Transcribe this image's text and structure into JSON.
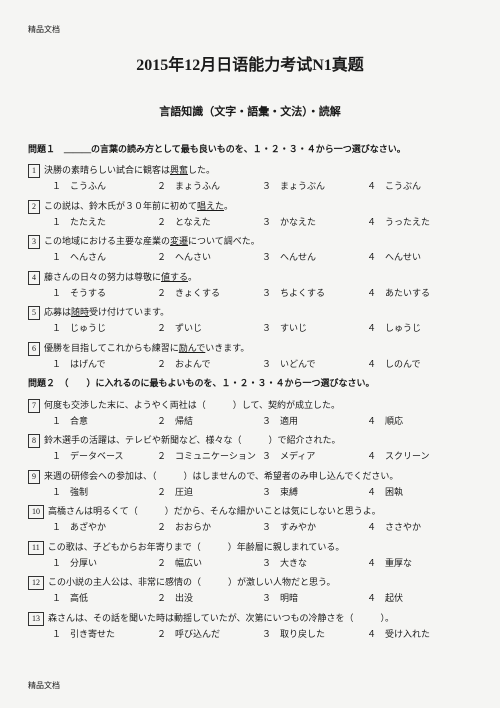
{
  "headerLabel": "精品文档",
  "title": "2015年12月日语能力考试N1真题",
  "subtitle": "言語知識（文字・語彙・文法）・読解",
  "section1": {
    "instruction": "問題１　＿＿＿の言葉の読み方として最も良いものを、１・２・３・４から一つ選びなさい。",
    "questions": [
      {
        "n": "1",
        "text": "決勝の素晴らしい試合に観客は",
        "u": "興奮",
        "after": "した。",
        "opts": [
          "１　こうふん",
          "２　まょうふん",
          "３　まょうぶん",
          "４　こうぶん"
        ]
      },
      {
        "n": "2",
        "text": "この説は、鈴木氏が３０年前に初めて",
        "u": "唱えた",
        "after": "。",
        "opts": [
          "１　たたえた",
          "２　となえた",
          "３　かなえた",
          "４　うったえた"
        ]
      },
      {
        "n": "3",
        "text": "この地域における主要な産業の",
        "u": "変遷",
        "after": "について調べた。",
        "opts": [
          "１　へんさん",
          "２　へんさい",
          "３　へんせん",
          "４　へんせい"
        ]
      },
      {
        "n": "4",
        "text": "藤さんの日々の努力は尊敬に",
        "u": "値する",
        "after": "。",
        "opts": [
          "１　そうする",
          "２　きょくする",
          "３　ちよくする",
          "４　あたいする"
        ]
      },
      {
        "n": "5",
        "text": "応募は",
        "u": "随時",
        "after": "受け付けています。",
        "opts": [
          "１　じゅうじ",
          "２　ずいじ",
          "３　すいじ",
          "４　しゅうじ"
        ]
      },
      {
        "n": "6",
        "text": "優勝を目指してこれからも練習に",
        "u": "励んで",
        "after": "いきます。",
        "opts": [
          "１　はげんで",
          "２　およんで",
          "３　いどんで",
          "４　しのんで"
        ]
      }
    ]
  },
  "section2": {
    "instruction": "問題２　（　　）に入れるのに最もよいものを、１・２・３・４から一つ選びなさい。",
    "questions": [
      {
        "n": "7",
        "text": "何度も交渉した末に、ようやく両社は（　　　）して、契約が成立した。",
        "opts": [
          "１　合意",
          "２　帰結",
          "３　適用",
          "４　順応"
        ]
      },
      {
        "n": "8",
        "text": "鈴木選手の活躍は、テレビや新聞など、様々な（　　　）で紹介された。",
        "opts": [
          "１　データベース",
          "２　コミュニケーション",
          "３　メディア",
          "４　スクリーン"
        ]
      },
      {
        "n": "9",
        "text": "来週の研修会への参加は、（　　　）はしませんので、希望者のみ申し込んでください。",
        "opts": [
          "１　強制",
          "２　圧迫",
          "３　束縛",
          "４　困執"
        ]
      },
      {
        "n": "10",
        "text": "高橋さんは明るくて（　　　）だから、そんな細かいことは気にしないと思うよ。",
        "opts": [
          "１　あざやか",
          "２　おおらか",
          "３　すみやか",
          "４　ささやか"
        ]
      },
      {
        "n": "11",
        "text": "この歌は、子どもからお年寄りまで（　　　）年齢層に親しまれている。",
        "opts": [
          "１　分厚い",
          "２　幅広い",
          "３　大きな",
          "４　重厚な"
        ]
      },
      {
        "n": "12",
        "text": "この小説の主人公は、非常に感情の（　　　）が激しい人物だと思う。",
        "opts": [
          "１　高低",
          "２　出没",
          "３　明暗",
          "４　起伏"
        ]
      },
      {
        "n": "13",
        "text": "森さんは、その話を聞いた時は動揺していたが、次第にいつもの冷静さを（　　　）。",
        "opts": [
          "１　引き寄せた",
          "２　呼び込んだ",
          "３　取り戻した",
          "４　受け入れた"
        ]
      }
    ]
  },
  "footerLabel": "精品文档"
}
